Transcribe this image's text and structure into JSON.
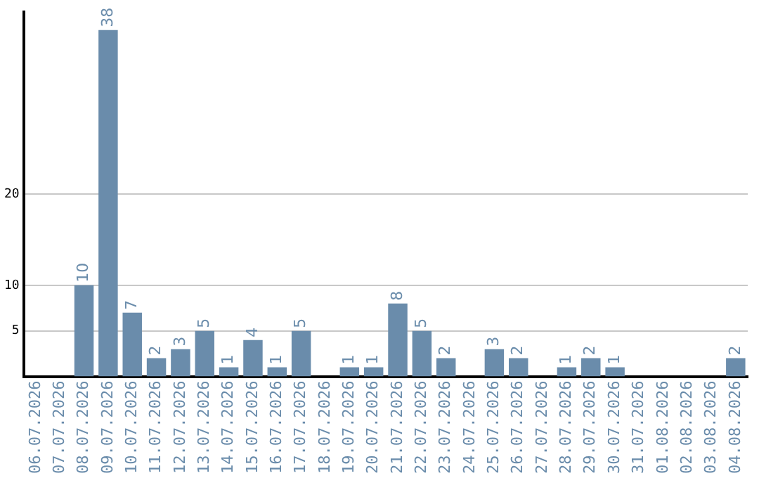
{
  "chart_data": {
    "type": "bar",
    "categories": [
      "06.07.2026",
      "07.07.2026",
      "08.07.2026",
      "09.07.2026",
      "10.07.2026",
      "11.07.2026",
      "12.07.2026",
      "13.07.2026",
      "14.07.2026",
      "15.07.2026",
      "16.07.2026",
      "17.07.2026",
      "18.07.2026",
      "19.07.2026",
      "20.07.2026",
      "21.07.2026",
      "22.07.2026",
      "23.07.2026",
      "24.07.2026",
      "25.07.2026",
      "26.07.2026",
      "27.07.2026",
      "28.07.2026",
      "29.07.2026",
      "30.07.2026",
      "31.07.2026",
      "01.08.2026",
      "02.08.2026",
      "03.08.2026",
      "04.08.2026"
    ],
    "values": [
      0,
      0,
      10,
      38,
      7,
      2,
      3,
      5,
      1,
      4,
      1,
      5,
      0,
      1,
      1,
      8,
      5,
      2,
      0,
      3,
      2,
      0,
      1,
      2,
      1,
      0,
      0,
      0,
      0,
      2
    ],
    "value_labels": [
      null,
      null,
      "10",
      "38",
      "7",
      "2",
      "3",
      "5",
      "1",
      "4",
      "1",
      "5",
      null,
      "1",
      "1",
      "8",
      "5",
      "2",
      null,
      "3",
      "2",
      null,
      "1",
      "2",
      "1",
      null,
      null,
      null,
      null,
      "2"
    ],
    "color": "#6a8cab",
    "ylim": [
      0,
      40
    ],
    "yticks": [
      5,
      10,
      20
    ],
    "grid": "y",
    "legend": false
  }
}
